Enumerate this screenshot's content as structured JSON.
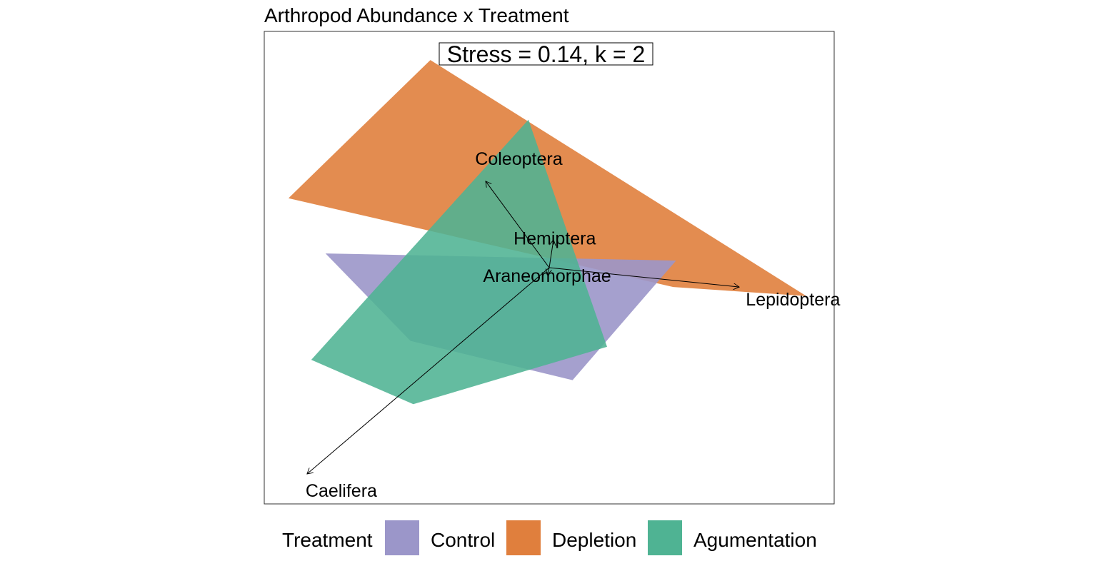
{
  "chart_data": {
    "type": "scatter",
    "title": "Arthropod Abundance x Treatment",
    "annotation": "Stress = 0.14, k = 2",
    "xlabel": "",
    "ylabel": "",
    "xlim": [
      -1.0,
      1.0
    ],
    "ylim": [
      -1.0,
      1.0
    ],
    "grid": false,
    "legend": {
      "position": "bottom",
      "title": "Treatment",
      "entries": [
        {
          "name": "Control",
          "color": "#9b96c9"
        },
        {
          "name": "Depletion",
          "color": "#e07f3d"
        },
        {
          "name": "Agumentation",
          "color": "#4fb393"
        }
      ]
    },
    "hulls": [
      {
        "name": "Depletion",
        "color": "#e07f3d",
        "opacity": 0.9,
        "points": [
          [
            -0.417,
            0.879
          ],
          [
            0.902,
            -0.12
          ],
          [
            0.435,
            -0.082
          ],
          [
            -0.915,
            0.294
          ]
        ]
      },
      {
        "name": "Control",
        "color": "#9b96c9",
        "opacity": 0.9,
        "points": [
          [
            -0.785,
            0.06
          ],
          [
            0.445,
            0.03
          ],
          [
            0.082,
            -0.476
          ],
          [
            -0.487,
            -0.31
          ]
        ]
      },
      {
        "name": "Agumentation",
        "color": "#4fb393",
        "opacity": 0.88,
        "points": [
          [
            -0.073,
            0.626
          ],
          [
            0.203,
            -0.335
          ],
          [
            -0.477,
            -0.578
          ],
          [
            -0.835,
            -0.39
          ]
        ]
      }
    ],
    "vectors": [
      {
        "name": "Coleoptera",
        "x": -0.223,
        "y": 0.366,
        "label_x": -0.26,
        "label_y": 0.455
      },
      {
        "name": "Hemiptera",
        "x": 0.015,
        "y": 0.118,
        "label_x": -0.125,
        "label_y": 0.118
      },
      {
        "name": "Lepidoptera",
        "x": 0.667,
        "y": -0.082,
        "label_x": 0.69,
        "label_y": -0.14
      },
      {
        "name": "Araneomorphae",
        "x": -0.007,
        "y": -0.03,
        "label_x": -0.232,
        "label_y": -0.04
      },
      {
        "name": "Caelifera",
        "x": -0.85,
        "y": -0.873,
        "label_x": -0.855,
        "label_y": -0.95
      }
    ]
  }
}
